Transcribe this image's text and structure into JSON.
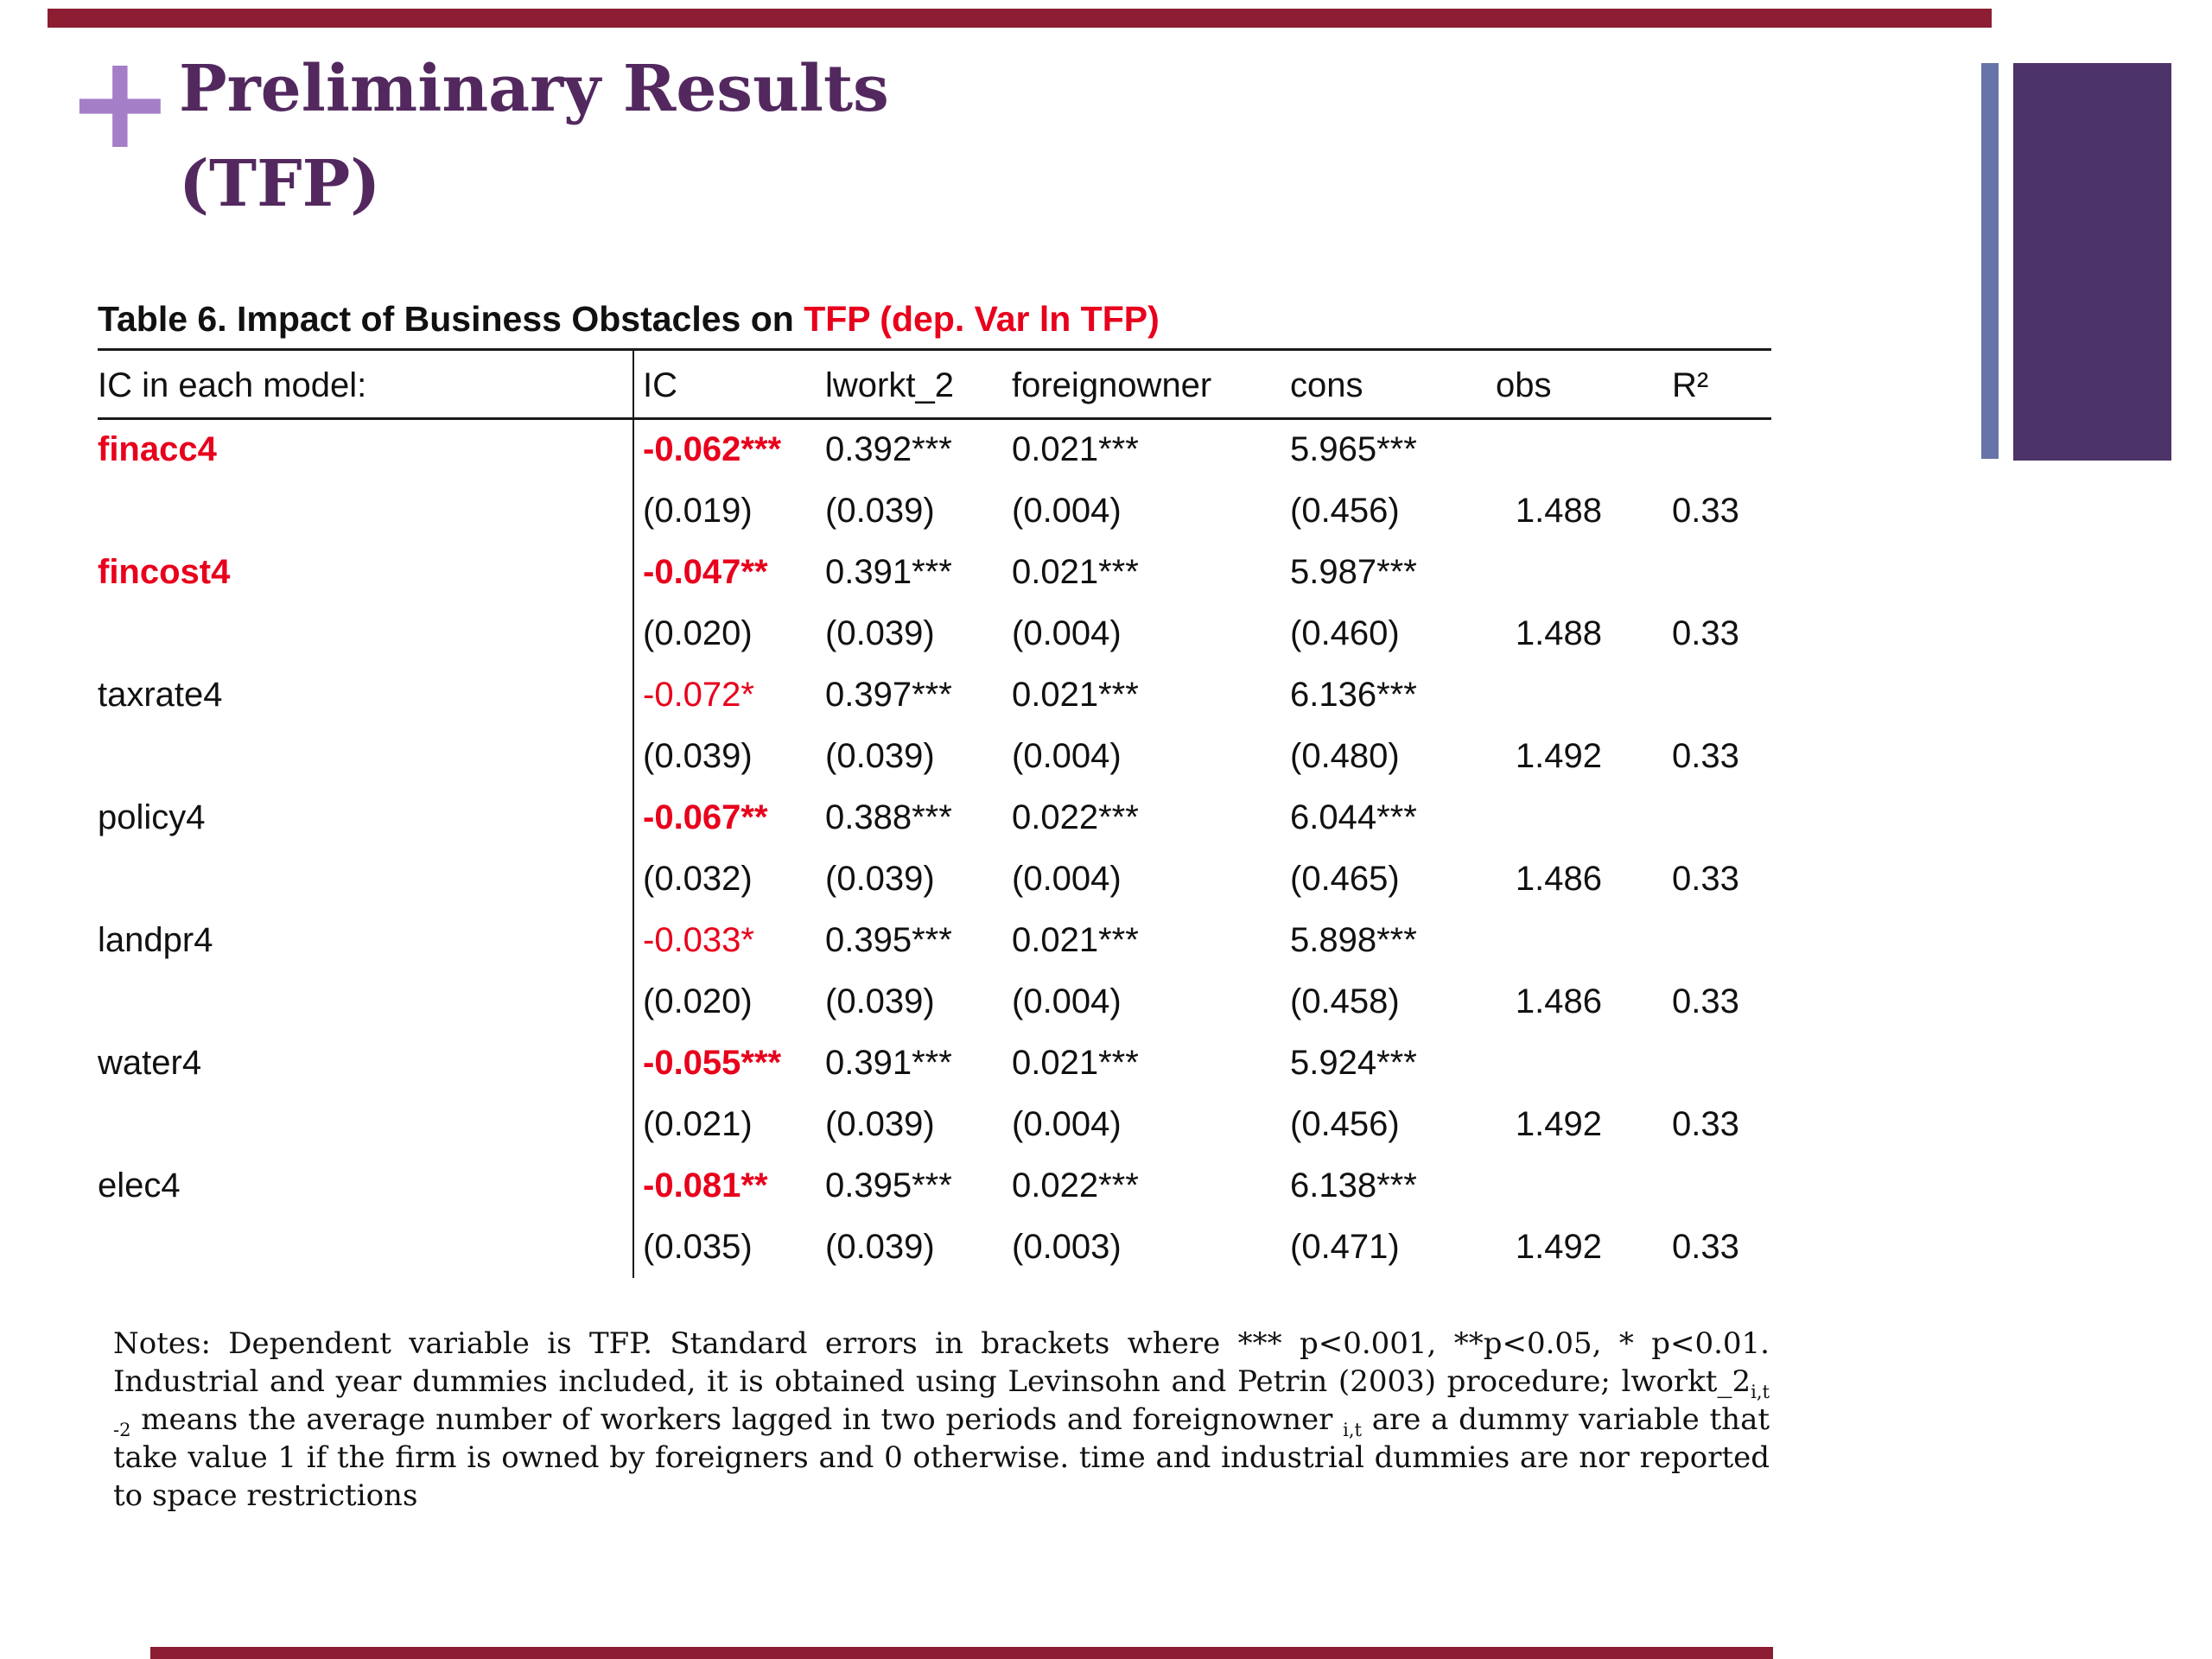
{
  "slide": {
    "plus_glyph": "+",
    "title_line1": "Preliminary Results",
    "title_line2": "(TFP)"
  },
  "table": {
    "caption_black": "Table 6. Impact of Business Obstacles on ",
    "caption_red": "TFP (dep. Var ln TFP)",
    "headers": [
      "IC in each model:",
      "IC",
      "lworkt_2",
      "foreignowner",
      "cons",
      "obs",
      "R²"
    ],
    "rows": [
      {
        "label": "finacc4",
        "label_red": true,
        "ic": "-0.062***",
        "ic_bold": true,
        "coef": [
          "0.392***",
          "0.021***",
          "5.965***"
        ],
        "se": [
          "(0.019)",
          "(0.039)",
          "(0.004)",
          "(0.456)"
        ],
        "obs": "1.488",
        "r2": "0.33"
      },
      {
        "label": "fincost4",
        "label_red": true,
        "ic": "-0.047**",
        "ic_bold": true,
        "coef": [
          "0.391***",
          "0.021***",
          "5.987***"
        ],
        "se": [
          "(0.020)",
          "(0.039)",
          "(0.004)",
          "(0.460)"
        ],
        "obs": "1.488",
        "r2": "0.33"
      },
      {
        "label": "taxrate4",
        "label_red": false,
        "ic": "-0.072*",
        "ic_bold": false,
        "coef": [
          "0.397***",
          "0.021***",
          "6.136***"
        ],
        "se": [
          "(0.039)",
          "(0.039)",
          "(0.004)",
          "(0.480)"
        ],
        "obs": "1.492",
        "r2": "0.33"
      },
      {
        "label": "policy4",
        "label_red": false,
        "ic": "-0.067**",
        "ic_bold": true,
        "coef": [
          "0.388***",
          "0.022***",
          "6.044***"
        ],
        "se": [
          "(0.032)",
          "(0.039)",
          "(0.004)",
          "(0.465)"
        ],
        "obs": "1.486",
        "r2": "0.33"
      },
      {
        "label": "landpr4",
        "label_red": false,
        "ic": "-0.033*",
        "ic_bold": false,
        "coef": [
          "0.395***",
          "0.021***",
          "5.898***"
        ],
        "se": [
          "(0.020)",
          "(0.039)",
          "(0.004)",
          "(0.458)"
        ],
        "obs": "1.486",
        "r2": "0.33"
      },
      {
        "label": "water4",
        "label_red": false,
        "ic": "-0.055***",
        "ic_bold": true,
        "coef": [
          "0.391***",
          "0.021***",
          "5.924***"
        ],
        "se": [
          "(0.021)",
          "(0.039)",
          "(0.004)",
          "(0.456)"
        ],
        "obs": "1.492",
        "r2": "0.33"
      },
      {
        "label": "elec4",
        "label_red": false,
        "ic": "-0.081**",
        "ic_bold": true,
        "coef": [
          "0.395***",
          "0.022***",
          "6.138***"
        ],
        "se": [
          "(0.035)",
          "(0.039)",
          "(0.003)",
          "(0.471)"
        ],
        "obs": "1.492",
        "r2": "0.33"
      }
    ]
  },
  "notes": {
    "segments": [
      {
        "text": "Notes: Dependent variable is TFP. Standard errors in brackets where *** p<0.001, **p<0.05, * p<0.01. Industrial and year dummies included, it is obtained using Levinsohn and Petrin (2003) procedure; lworkt_2"
      },
      {
        "text": "i,t -2",
        "sub": true
      },
      {
        "text": " means the average number of workers lagged in two periods and foreignowner "
      },
      {
        "text": "i,t",
        "sub": true
      },
      {
        "text": " are a dummy variable that take value 1 if the firm is owned by foreigners and 0 otherwise. time and industrial dummies are nor reported to space restrictions"
      }
    ]
  },
  "colors": {
    "accent_red_text": "#e8001c",
    "title_purple": "#53285f",
    "plus_purple": "#a57ec8",
    "bar_maroon": "#8c1d32",
    "side_rect_purple": "#4c3368",
    "side_bar_slate": "#6674a8"
  }
}
